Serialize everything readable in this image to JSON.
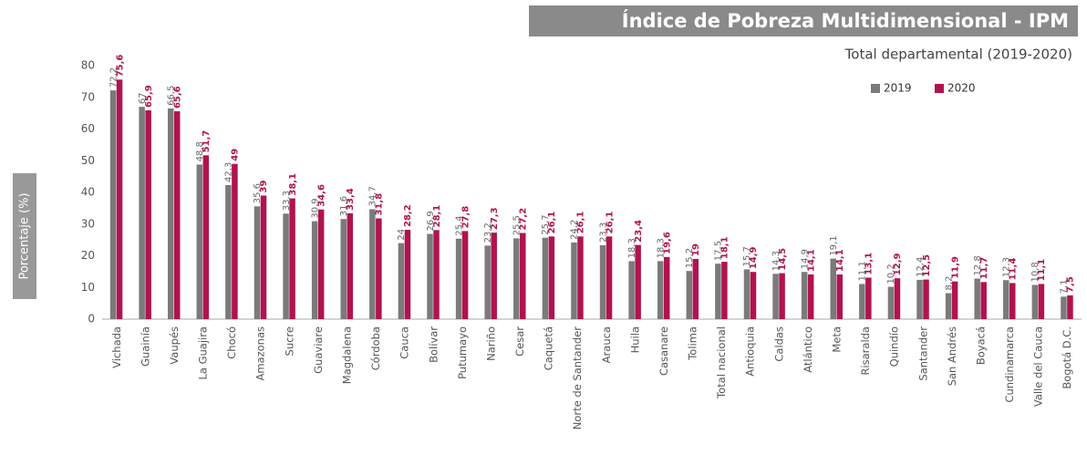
{
  "chart_data": {
    "type": "bar",
    "title": "Índice de Pobreza Multidimensional - IPM",
    "subtitle": "Total departamental (2019-2020)",
    "y_label": "Porcentaje (%)",
    "categories": [
      "Vichada",
      "Guainía",
      "Vaupés",
      "La Guajira",
      "Chocó",
      "Amazonas",
      "Sucre",
      "Guaviare",
      "Magdalena",
      "Córdoba",
      "Cauca",
      "Bolívar",
      "Putumayo",
      "Nariño",
      "Cesar",
      "Caquetá",
      "Norte de Santander",
      "Arauca",
      "Huila",
      "Casanare",
      "Tolima",
      "Total nacional",
      "Antioquia",
      "Caldas",
      "Atlántico",
      "Meta",
      "Risaralda",
      "Quindío",
      "Santander",
      "San Andrés",
      "Boyacá",
      "Cundinamarca",
      "Valle del Cauca",
      "Bogotá D.C."
    ],
    "series": [
      {
        "name": "2019",
        "color": "#7a7a7a",
        "values": [
          72.2,
          67,
          66.5,
          48.8,
          42.3,
          35.6,
          33.3,
          30.9,
          31.6,
          34.7,
          24,
          26.9,
          25.4,
          23.2,
          25.5,
          25.7,
          24.2,
          23.3,
          18.3,
          18.3,
          15.2,
          17.5,
          15.7,
          14.3,
          14.9,
          19.1,
          11.1,
          10.2,
          12.4,
          8.2,
          12.8,
          12.3,
          10.8,
          7.1
        ],
        "value_labels": [
          "72,2",
          "67",
          "66,5",
          "48,8",
          "42,3",
          "35,6",
          "33,3",
          "30,9",
          "31,6",
          "34,7",
          "24",
          "26,9",
          "25,4",
          "23,2",
          "25,5",
          "25,7",
          "24,2",
          "23,3",
          "18,3",
          "18,3",
          "15,2",
          "17,5",
          "15,7",
          "14,3",
          "14,9",
          "19,1",
          "11,1",
          "10,2",
          "12,4",
          "8,2",
          "12,8",
          "12,3",
          "10,8",
          "7,1"
        ]
      },
      {
        "name": "2020",
        "color": "#b0134f",
        "values": [
          75.6,
          65.9,
          65.6,
          51.7,
          49,
          39,
          38.1,
          34.6,
          33.4,
          31.8,
          28.2,
          28.1,
          27.8,
          27.3,
          27.2,
          26.1,
          26.1,
          26.1,
          23.4,
          19.6,
          19,
          18.1,
          14.9,
          14.5,
          14.1,
          14.1,
          13.1,
          12.9,
          12.5,
          11.9,
          11.7,
          11.4,
          11.1,
          7.5
        ],
        "value_labels": [
          "75,6",
          "65,9",
          "65,6",
          "51,7",
          "49",
          "39",
          "38,1",
          "34,6",
          "33,4",
          "31,8",
          "28,2",
          "28,1",
          "27,8",
          "27,3",
          "27,2",
          "26,1",
          "26,1",
          "26,1",
          "23,4",
          "19,6",
          "19",
          "18,1",
          "14,9",
          "14,5",
          "14,1",
          "14,1",
          "13,1",
          "12,9",
          "12,5",
          "11,9",
          "11,7",
          "11,4",
          "11,1",
          "7,5"
        ]
      }
    ],
    "ylim": [
      0,
      80
    ],
    "yticks": [
      0,
      10,
      20,
      30,
      40,
      50,
      60,
      70,
      80
    ],
    "grid": false,
    "legend": "upper right"
  }
}
